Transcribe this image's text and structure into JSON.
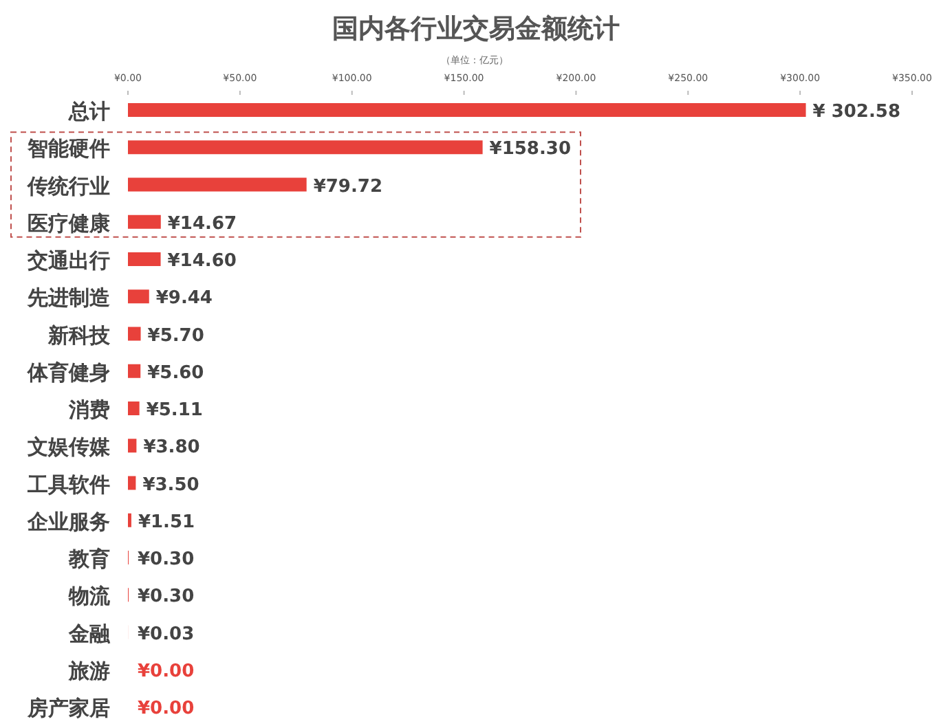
{
  "chart_data": {
    "type": "bar",
    "orientation": "horizontal",
    "title": "国内各行业交易金额统计",
    "subtitle": "（单位：亿元）",
    "categories": [
      "总计",
      "智能硬件",
      "传统行业",
      "医疗健康",
      "交通出行",
      "先进制造",
      "新科技",
      "体育健身",
      "消费",
      "文娱传媒",
      "工具软件",
      "企业服务",
      "教育",
      "物流",
      "金融",
      "旅游",
      "房产家居"
    ],
    "values": [
      302.58,
      158.3,
      79.72,
      14.67,
      14.6,
      9.44,
      5.7,
      5.6,
      5.11,
      3.8,
      3.5,
      1.51,
      0.3,
      0.3,
      0.03,
      0.0,
      0.0
    ],
    "value_labels": [
      "¥ 302.58",
      "¥158.30",
      "¥79.72",
      "¥14.67",
      "¥14.60",
      "¥9.44",
      "¥5.70",
      "¥5.60",
      "¥5.11",
      "¥3.80",
      "¥3.50",
      "¥1.51",
      "¥0.30",
      "¥0.30",
      "¥0.03",
      "¥0.00",
      "¥0.00"
    ],
    "color": "#e8413b",
    "xlim": [
      0,
      350
    ],
    "xticks": [
      {
        "value": 0,
        "label": "¥0.00"
      },
      {
        "value": 50,
        "label": "¥50.00"
      },
      {
        "value": 100,
        "label": "¥100.00"
      },
      {
        "value": 150,
        "label": "¥150.00"
      },
      {
        "value": 200,
        "label": "¥200.00"
      },
      {
        "value": 250,
        "label": "¥250.00"
      },
      {
        "value": 300,
        "label": "¥300.00"
      },
      {
        "value": 350,
        "label": "¥350.00"
      }
    ],
    "grid": false
  }
}
